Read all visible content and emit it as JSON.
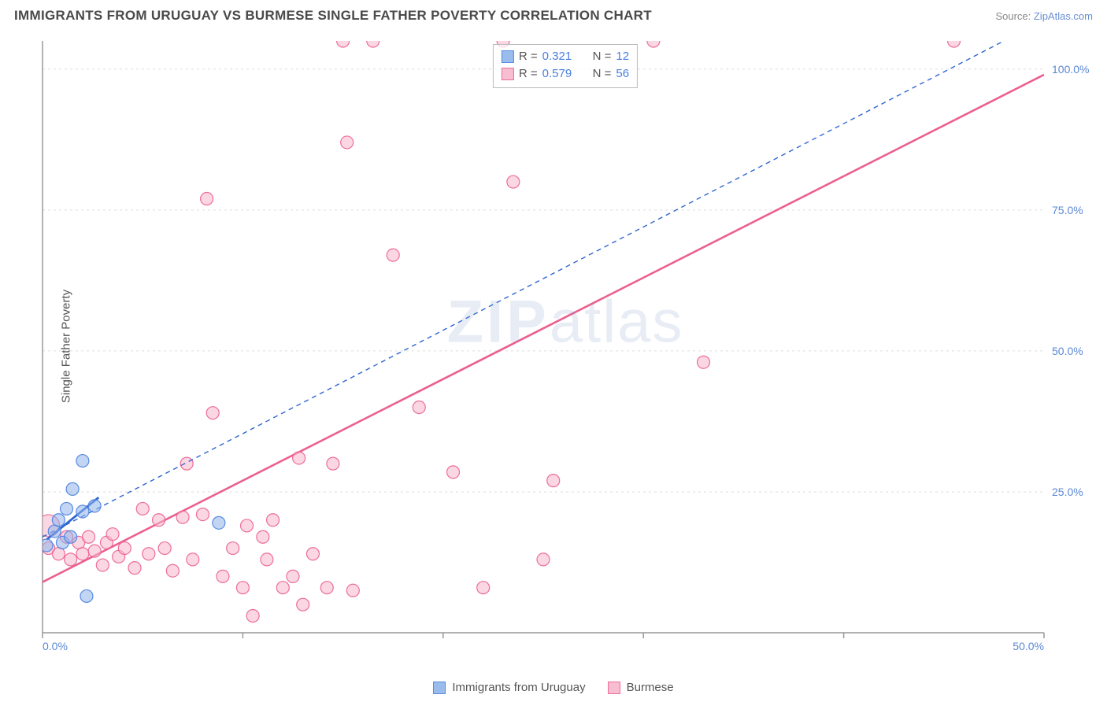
{
  "title": "IMMIGRANTS FROM URUGUAY VS BURMESE SINGLE FATHER POVERTY CORRELATION CHART",
  "source_label": "Source: ",
  "source_name": "ZipAtlas.com",
  "ylabel": "Single Father Poverty",
  "watermark": {
    "zip": "ZIP",
    "atlas": "atlas"
  },
  "chart": {
    "type": "scatter",
    "background_color": "#ffffff",
    "grid_color": "#dddddd",
    "axis_color": "#999999",
    "tick_color": "#999999",
    "tick_font_size": 14,
    "xlim": [
      0,
      50
    ],
    "ylim": [
      0,
      105
    ],
    "xticks": [
      0,
      10,
      20,
      30,
      40,
      50
    ],
    "xtick_labels": [
      "0.0%",
      "",
      "",
      "",
      "",
      "50.0%"
    ],
    "yticks": [
      25,
      50,
      75,
      100
    ],
    "ytick_labels": [
      "25.0%",
      "50.0%",
      "75.0%",
      "100.0%"
    ],
    "label_color": "#5b88d6"
  },
  "legend_stats": [
    {
      "series": "uruguay",
      "r_label": "R  =",
      "r": "0.321",
      "n_label": "N  =",
      "n": "12"
    },
    {
      "series": "burmese",
      "r_label": "R  =",
      "r": "0.579",
      "n_label": "N  =",
      "n": "56"
    }
  ],
  "bottom_legend": [
    {
      "series": "uruguay",
      "label": "Immigrants from Uruguay"
    },
    {
      "series": "burmese",
      "label": "Burmese"
    }
  ],
  "series": {
    "uruguay": {
      "fill_color": "#8fb5eb",
      "fill_opacity": 0.55,
      "stroke_color": "#4a7fe0",
      "line_color": "#2f66d0",
      "line_dash": "6 5",
      "line_width": 1.4,
      "marker_radius": 8,
      "trend": {
        "x1": 0,
        "y1": 17,
        "x2": 48,
        "y2": 105
      },
      "solid_trend": {
        "x1": 0.2,
        "y1": 16.5,
        "x2": 2.8,
        "y2": 24
      },
      "points": [
        {
          "x": 0.2,
          "y": 15.5
        },
        {
          "x": 0.6,
          "y": 18
        },
        {
          "x": 0.8,
          "y": 20
        },
        {
          "x": 1.0,
          "y": 16
        },
        {
          "x": 1.2,
          "y": 22
        },
        {
          "x": 1.4,
          "y": 17
        },
        {
          "x": 1.5,
          "y": 25.5
        },
        {
          "x": 2.0,
          "y": 21.5
        },
        {
          "x": 2.0,
          "y": 30.5
        },
        {
          "x": 2.2,
          "y": 6.5
        },
        {
          "x": 2.6,
          "y": 22.5
        },
        {
          "x": 8.8,
          "y": 19.5
        }
      ]
    },
    "burmese": {
      "fill_color": "#f7b6cc",
      "fill_opacity": 0.55,
      "stroke_color": "#ec5f8f",
      "line_color": "#ec5f8f",
      "line_dash": "",
      "line_width": 2.6,
      "marker_radius": 8,
      "trend": {
        "x1": 0,
        "y1": 9,
        "x2": 50,
        "y2": 99
      },
      "points": [
        {
          "x": 0.3,
          "y": 19,
          "r": 14
        },
        {
          "x": 0.3,
          "y": 15
        },
        {
          "x": 0.8,
          "y": 14
        },
        {
          "x": 1.2,
          "y": 17
        },
        {
          "x": 1.4,
          "y": 13
        },
        {
          "x": 1.8,
          "y": 16
        },
        {
          "x": 2.0,
          "y": 14
        },
        {
          "x": 2.3,
          "y": 17
        },
        {
          "x": 2.6,
          "y": 14.5
        },
        {
          "x": 3.0,
          "y": 12
        },
        {
          "x": 3.2,
          "y": 16
        },
        {
          "x": 3.5,
          "y": 17.5
        },
        {
          "x": 3.8,
          "y": 13.5
        },
        {
          "x": 4.1,
          "y": 15
        },
        {
          "x": 4.6,
          "y": 11.5
        },
        {
          "x": 5.0,
          "y": 22
        },
        {
          "x": 5.3,
          "y": 14
        },
        {
          "x": 5.8,
          "y": 20
        },
        {
          "x": 6.1,
          "y": 15
        },
        {
          "x": 6.5,
          "y": 11
        },
        {
          "x": 7.0,
          "y": 20.5
        },
        {
          "x": 7.2,
          "y": 30
        },
        {
          "x": 7.5,
          "y": 13
        },
        {
          "x": 8.0,
          "y": 21
        },
        {
          "x": 8.2,
          "y": 77
        },
        {
          "x": 8.5,
          "y": 39
        },
        {
          "x": 9.0,
          "y": 10
        },
        {
          "x": 9.5,
          "y": 15
        },
        {
          "x": 10.0,
          "y": 8
        },
        {
          "x": 10.2,
          "y": 19
        },
        {
          "x": 10.5,
          "y": 3
        },
        {
          "x": 11.0,
          "y": 17
        },
        {
          "x": 11.2,
          "y": 13
        },
        {
          "x": 11.5,
          "y": 20
        },
        {
          "x": 12.0,
          "y": 8
        },
        {
          "x": 12.5,
          "y": 10
        },
        {
          "x": 12.8,
          "y": 31
        },
        {
          "x": 13.0,
          "y": 5
        },
        {
          "x": 13.5,
          "y": 14
        },
        {
          "x": 14.2,
          "y": 8
        },
        {
          "x": 14.5,
          "y": 30
        },
        {
          "x": 15.0,
          "y": 105
        },
        {
          "x": 15.2,
          "y": 87
        },
        {
          "x": 15.5,
          "y": 7.5
        },
        {
          "x": 16.5,
          "y": 105
        },
        {
          "x": 17.5,
          "y": 67
        },
        {
          "x": 18.8,
          "y": 40
        },
        {
          "x": 20.5,
          "y": 28.5
        },
        {
          "x": 22.0,
          "y": 8
        },
        {
          "x": 23.0,
          "y": 105
        },
        {
          "x": 23.5,
          "y": 80
        },
        {
          "x": 25.0,
          "y": 13
        },
        {
          "x": 25.5,
          "y": 27
        },
        {
          "x": 30.5,
          "y": 105
        },
        {
          "x": 33.0,
          "y": 48
        },
        {
          "x": 45.5,
          "y": 105
        }
      ]
    }
  }
}
